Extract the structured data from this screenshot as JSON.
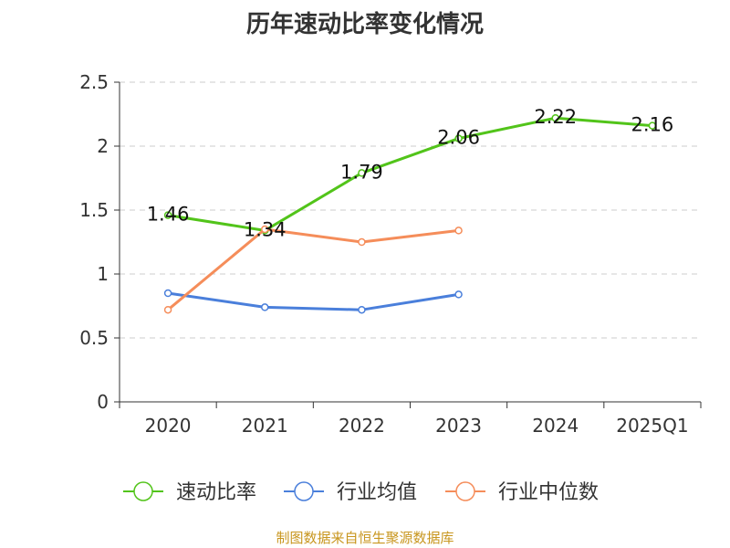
{
  "colors": {
    "green": "#52c41a",
    "blue": "#4a7fdb",
    "orange": "#f58d5a",
    "grid": "#cccccc",
    "axis": "#333333",
    "source": "#c8961e"
  },
  "source_note": "制图数据来自恒生聚源数据库",
  "chart_data": {
    "type": "line",
    "title": "历年速动比率变化情况",
    "categories": [
      "2020",
      "2021",
      "2022",
      "2023",
      "2024",
      "2025Q1"
    ],
    "ylim": [
      0,
      2.5
    ],
    "yticks": [
      "0",
      "0.5",
      "1",
      "1.5",
      "2",
      "2.5"
    ],
    "grid": true,
    "legend_position": "bottom",
    "series": [
      {
        "name": "速动比率",
        "color_key": "green",
        "values": [
          1.46,
          1.34,
          1.79,
          2.06,
          2.22,
          2.16
        ],
        "labels": [
          "1.46",
          "1.34",
          "1.79",
          "2.06",
          "2.22",
          "2.16"
        ]
      },
      {
        "name": "行业均值",
        "color_key": "blue",
        "values": [
          0.85,
          0.74,
          0.72,
          0.84,
          null,
          null
        ]
      },
      {
        "name": "行业中位数",
        "color_key": "orange",
        "values": [
          0.72,
          1.35,
          1.25,
          1.34,
          null,
          null
        ]
      }
    ]
  }
}
